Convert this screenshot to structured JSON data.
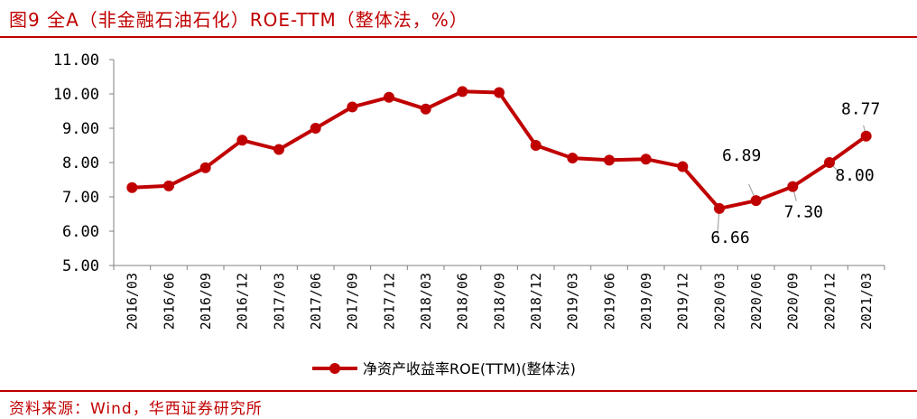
{
  "header": {
    "title": "图9 全A（非金融石油石化）ROE-TTM（整体法，%）"
  },
  "footer": {
    "source": "资料来源：Wind，华西证券研究所"
  },
  "colors": {
    "accent": "#c00000",
    "series": "#c00000",
    "axis": "#808080"
  },
  "chart_data": {
    "type": "line",
    "title": "",
    "xlabel": "",
    "ylabel": "",
    "ylim": [
      5.0,
      11.0
    ],
    "yticks": [
      "5.00",
      "6.00",
      "7.00",
      "8.00",
      "9.00",
      "10.00",
      "11.00"
    ],
    "grid": false,
    "legend": "bottom",
    "categories": [
      "2016/03",
      "2016/06",
      "2016/09",
      "2016/12",
      "2017/03",
      "2017/06",
      "2017/09",
      "2017/12",
      "2018/03",
      "2018/06",
      "2018/09",
      "2018/12",
      "2019/03",
      "2019/06",
      "2019/09",
      "2019/12",
      "2020/03",
      "2020/06",
      "2020/09",
      "2020/12",
      "2021/03"
    ],
    "series": [
      {
        "name": "净资产收益率ROE(TTM)(整体法)",
        "values": [
          7.27,
          7.32,
          7.85,
          8.65,
          8.38,
          9.0,
          9.62,
          9.9,
          9.56,
          10.07,
          10.04,
          8.5,
          8.13,
          8.07,
          8.1,
          7.88,
          6.66,
          6.89,
          7.3,
          8.0,
          8.77
        ]
      }
    ],
    "data_labels": [
      {
        "index": 16,
        "text": "6.66"
      },
      {
        "index": 17,
        "text": "6.89"
      },
      {
        "index": 18,
        "text": "7.30"
      },
      {
        "index": 19,
        "text": "8.00"
      },
      {
        "index": 20,
        "text": "8.77"
      }
    ]
  }
}
